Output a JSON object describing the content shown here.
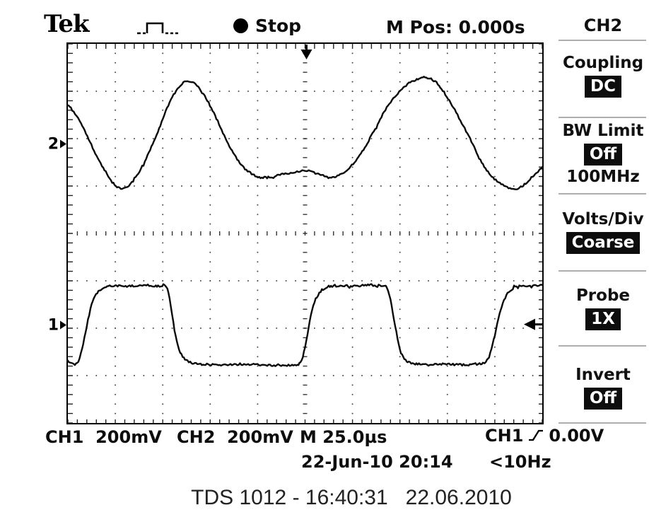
{
  "header": {
    "logo": "Tek",
    "acq_status": "Stop",
    "m_pos": "M Pos: 0.000s"
  },
  "sidebar": {
    "title": "CH2",
    "items": [
      {
        "label": "Coupling",
        "value": "DC"
      },
      {
        "label": "BW Limit",
        "value": "Off",
        "extra": "100MHz"
      },
      {
        "label": "Volts/Div",
        "value": "Coarse"
      },
      {
        "label": "Probe",
        "value": "1X"
      },
      {
        "label": "Invert",
        "value": "Off"
      }
    ]
  },
  "markers": {
    "ch2_label": "2",
    "ch1_label": "1"
  },
  "readouts": {
    "ch1_scale": "CH1  200mV",
    "ch2_scale": "CH2  200mV",
    "timebase": "M 25.0µs",
    "trigger_source": "CH1",
    "trigger_level": "0.00V",
    "datetime": "22-Jun-10 20:14",
    "trigger_freq": "<10Hz"
  },
  "footer": {
    "caption": "TDS 1012 - 16:40:31   22.06.2010"
  },
  "colors": {
    "trace": "#0a0a0a",
    "grid_dot": "#4a4a4a",
    "divider": "#aeaeae",
    "text": "#111111"
  },
  "chart_data": {
    "type": "line",
    "title": "Oscilloscope traces",
    "x_divisions": 10,
    "y_divisions": 8,
    "timebase_per_div": "25.0µs",
    "trigger": {
      "source": "CH1",
      "slope": "rising",
      "level": "0.00V",
      "position": "0.000s"
    },
    "markers": {
      "trigger_position_div": 5.03,
      "trigger_level_div": 5.92
    },
    "series": [
      {
        "name": "CH2",
        "volts_per_div": "200mV",
        "shape": "distorted sine",
        "ref_marker_div": 2.1,
        "points_div": [
          [
            0,
            1.28
          ],
          [
            0.25,
            1.62
          ],
          [
            0.55,
            2.25
          ],
          [
            0.85,
            2.8
          ],
          [
            1.09,
            3.04
          ],
          [
            1.35,
            2.92
          ],
          [
            1.65,
            2.42
          ],
          [
            1.95,
            1.72
          ],
          [
            2.2,
            1.12
          ],
          [
            2.49,
            0.79
          ],
          [
            2.75,
            0.92
          ],
          [
            3.05,
            1.4
          ],
          [
            3.35,
            2.05
          ],
          [
            3.65,
            2.55
          ],
          [
            3.95,
            2.78
          ],
          [
            4.2,
            2.82
          ],
          [
            4.5,
            2.76
          ],
          [
            4.8,
            2.7
          ],
          [
            5.05,
            2.68
          ],
          [
            5.3,
            2.75
          ],
          [
            5.55,
            2.82
          ],
          [
            5.85,
            2.7
          ],
          [
            6.15,
            2.35
          ],
          [
            6.45,
            1.85
          ],
          [
            6.75,
            1.3
          ],
          [
            7.1,
            0.9
          ],
          [
            7.4,
            0.73
          ],
          [
            7.56,
            0.71
          ],
          [
            7.8,
            0.85
          ],
          [
            8.1,
            1.3
          ],
          [
            8.45,
            1.95
          ],
          [
            8.75,
            2.55
          ],
          [
            9.05,
            2.9
          ],
          [
            9.4,
            3.06
          ],
          [
            9.65,
            2.95
          ],
          [
            9.85,
            2.75
          ],
          [
            10,
            2.62
          ]
        ]
      },
      {
        "name": "CH1",
        "volts_per_div": "200mV",
        "shape": "square",
        "ref_marker_div": 5.92,
        "points_div": [
          [
            0,
            6.7
          ],
          [
            0.12,
            6.76
          ],
          [
            0.22,
            6.72
          ],
          [
            0.3,
            6.45
          ],
          [
            0.4,
            5.95
          ],
          [
            0.5,
            5.5
          ],
          [
            0.62,
            5.25
          ],
          [
            0.78,
            5.14
          ],
          [
            1.0,
            5.1
          ],
          [
            1.3,
            5.11
          ],
          [
            1.6,
            5.09
          ],
          [
            1.9,
            5.11
          ],
          [
            2.05,
            5.1
          ],
          [
            2.12,
            5.25
          ],
          [
            2.2,
            5.75
          ],
          [
            2.3,
            6.3
          ],
          [
            2.42,
            6.6
          ],
          [
            2.58,
            6.72
          ],
          [
            2.8,
            6.76
          ],
          [
            3.2,
            6.77
          ],
          [
            3.6,
            6.76
          ],
          [
            4.0,
            6.77
          ],
          [
            4.4,
            6.78
          ],
          [
            4.75,
            6.77
          ],
          [
            4.9,
            6.72
          ],
          [
            5.0,
            6.4
          ],
          [
            5.1,
            5.85
          ],
          [
            5.2,
            5.45
          ],
          [
            5.33,
            5.22
          ],
          [
            5.5,
            5.12
          ],
          [
            5.8,
            5.1
          ],
          [
            6.1,
            5.11
          ],
          [
            6.4,
            5.09
          ],
          [
            6.6,
            5.11
          ],
          [
            6.72,
            5.14
          ],
          [
            6.8,
            5.4
          ],
          [
            6.9,
            5.95
          ],
          [
            7.0,
            6.45
          ],
          [
            7.12,
            6.68
          ],
          [
            7.3,
            6.75
          ],
          [
            7.6,
            6.77
          ],
          [
            7.9,
            6.76
          ],
          [
            8.2,
            6.77
          ],
          [
            8.5,
            6.77
          ],
          [
            8.75,
            6.74
          ],
          [
            8.88,
            6.6
          ],
          [
            9.0,
            6.15
          ],
          [
            9.1,
            5.7
          ],
          [
            9.22,
            5.35
          ],
          [
            9.38,
            5.16
          ],
          [
            9.6,
            5.1
          ],
          [
            9.8,
            5.11
          ],
          [
            10,
            5.09
          ]
        ]
      }
    ]
  }
}
